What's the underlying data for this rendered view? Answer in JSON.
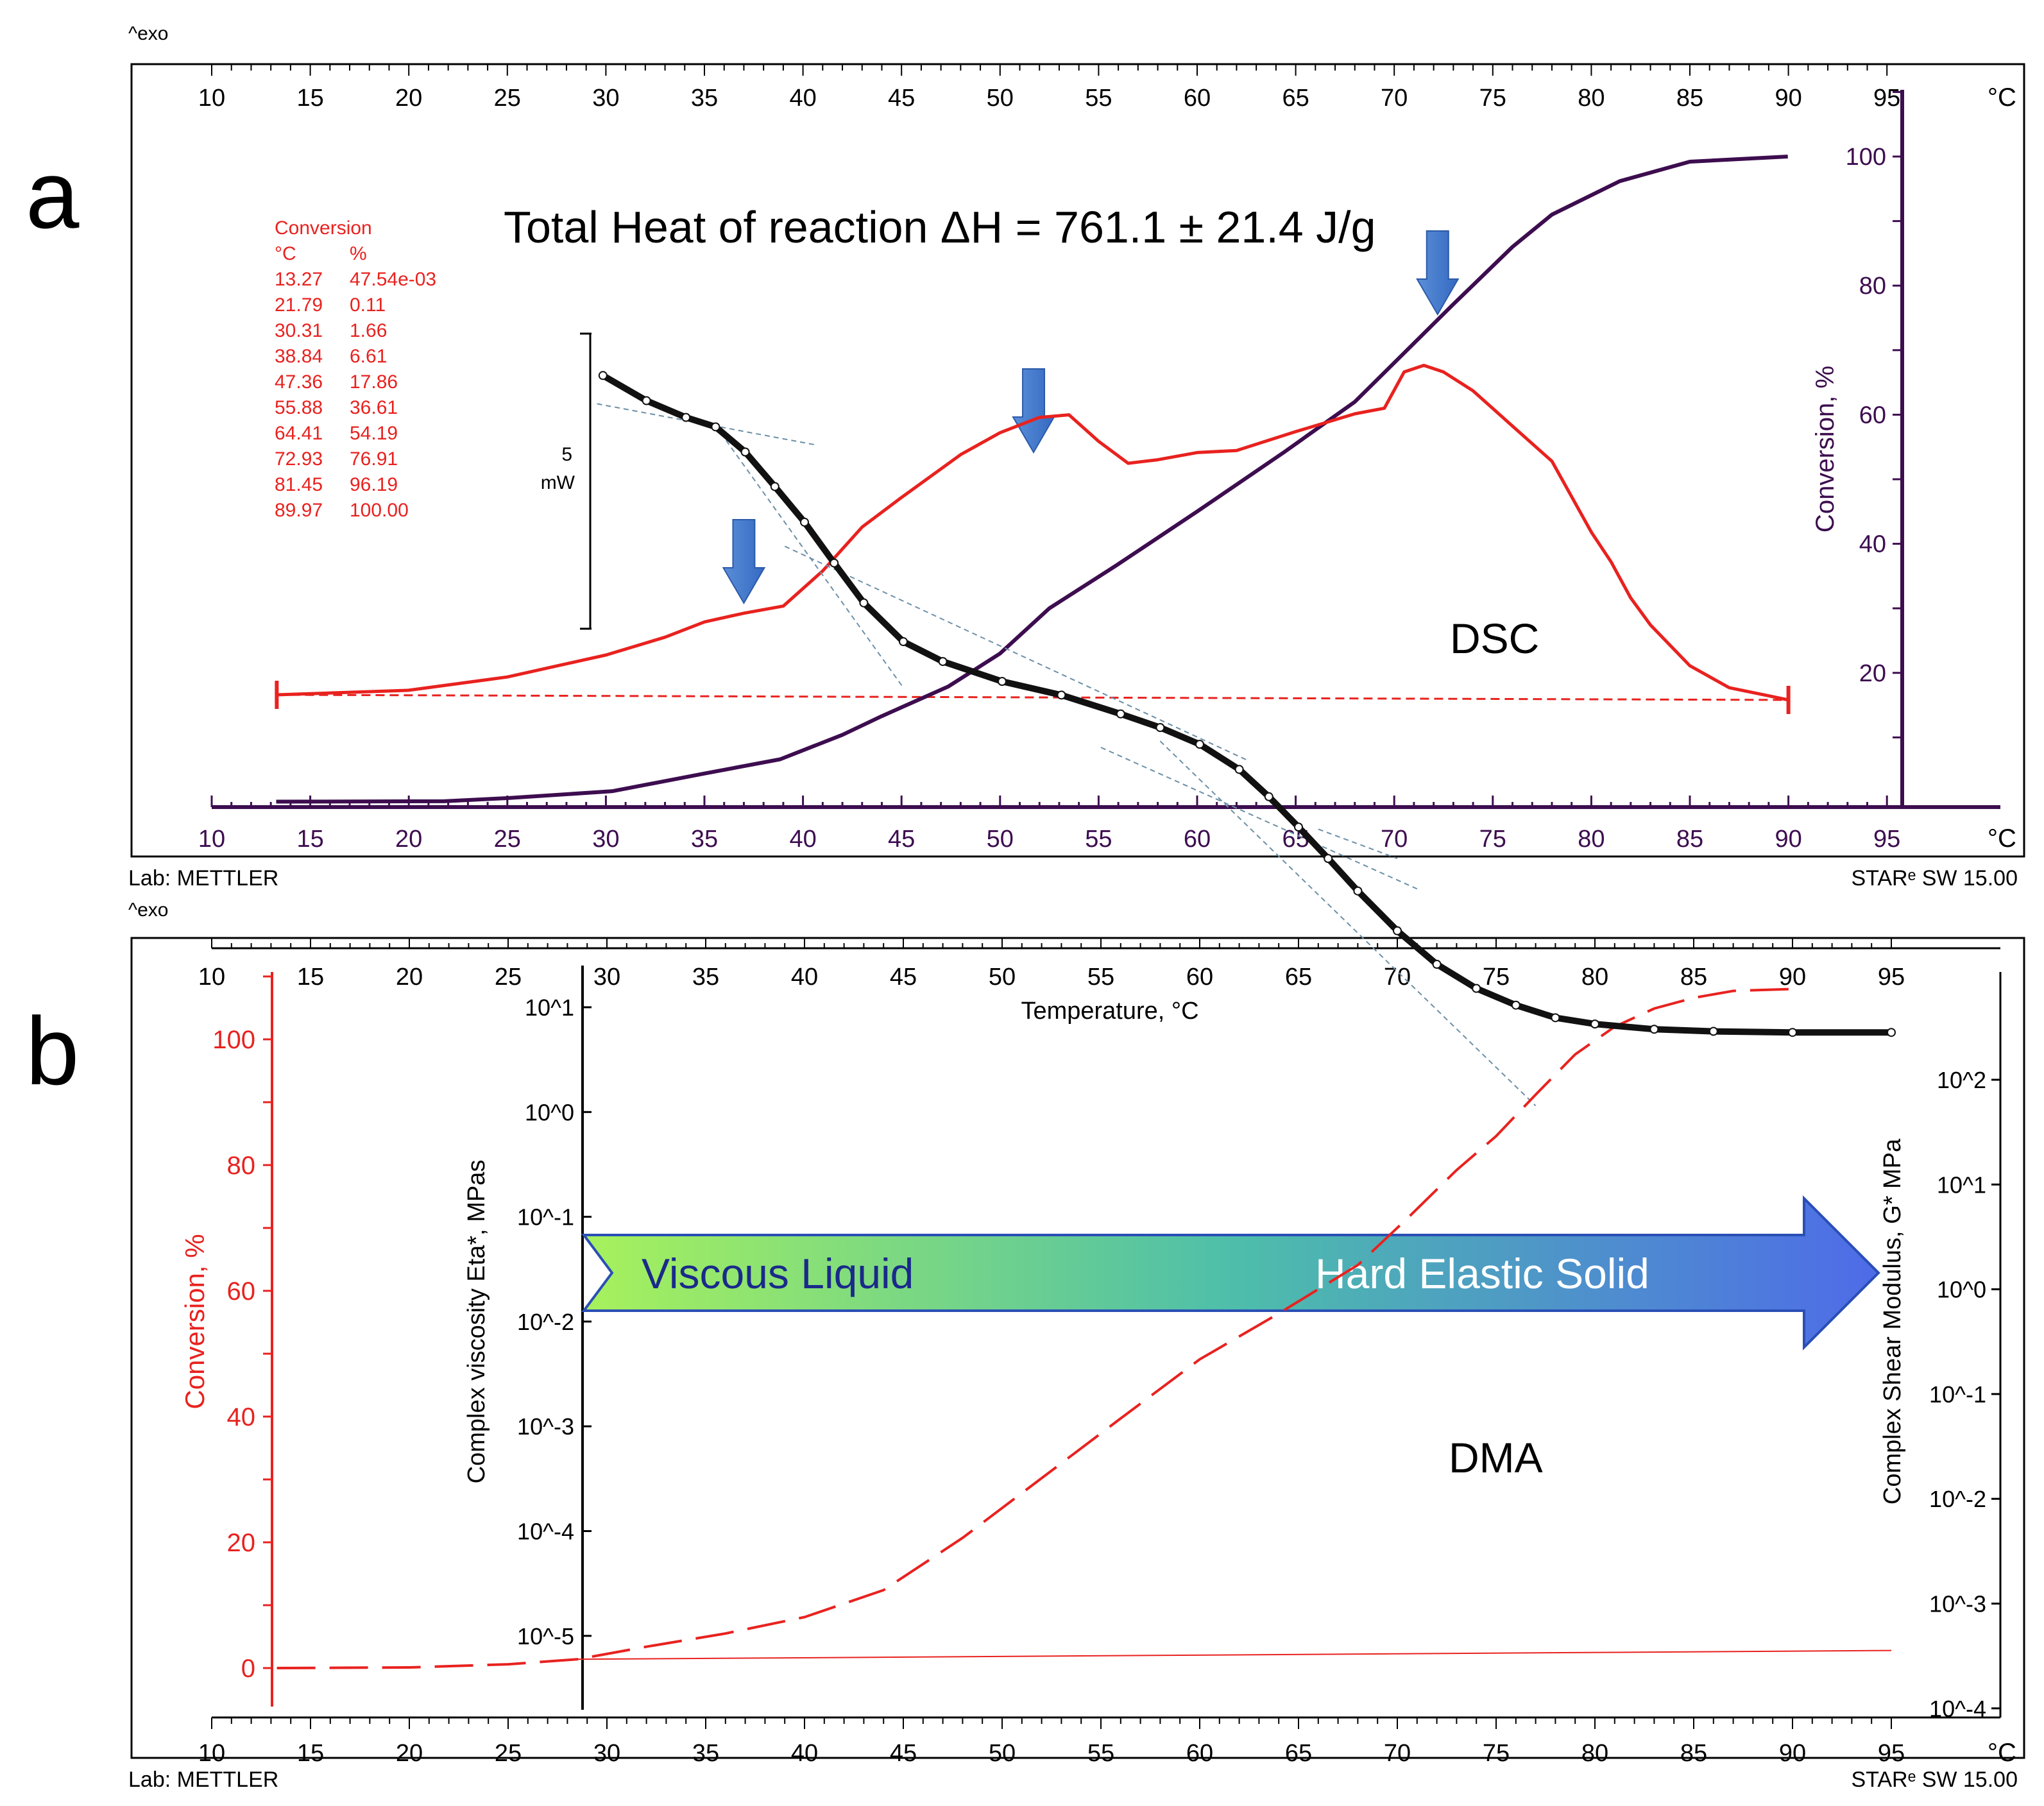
{
  "chart_data": [
    {
      "panel": "a",
      "type": "line",
      "exo_label": "^exo",
      "lab_label": "Lab: METTLER",
      "software_label": "STARᵉ SW 15.00",
      "annotation": "Total Heat of reaction ΔH = 761.1 ±  21.4 J/g",
      "curve_label": "DSC",
      "x_axis": {
        "unit": "°C",
        "min": 10,
        "max": 95,
        "ticks": [
          10,
          15,
          20,
          25,
          30,
          35,
          40,
          45,
          50,
          55,
          60,
          65,
          70,
          75,
          80,
          85,
          90,
          95
        ]
      },
      "y2_axis": {
        "label": "Conversion, %",
        "ticks": [
          20,
          40,
          60,
          80,
          100
        ]
      },
      "scale_bar": {
        "value": "5",
        "unit": "mW"
      },
      "conversion_table": {
        "title": "Conversion",
        "headers": [
          "°C",
          "%"
        ],
        "rows": [
          [
            "13.27",
            "47.54e-03"
          ],
          [
            "21.79",
            "0.11"
          ],
          [
            "30.31",
            "1.66"
          ],
          [
            "38.84",
            "6.61"
          ],
          [
            "47.36",
            "17.86"
          ],
          [
            "55.88",
            "36.61"
          ],
          [
            "64.41",
            "54.19"
          ],
          [
            "72.93",
            "76.91"
          ],
          [
            "81.45",
            "96.19"
          ],
          [
            "89.97",
            "100.00"
          ]
        ]
      },
      "arrows_at_c": [
        37,
        51.7,
        72.2
      ],
      "series": [
        {
          "name": "DSC heat flow (relative)",
          "color": "#e8221f",
          "x": [
            13.3,
            20,
            25,
            30,
            33,
            35,
            37,
            39,
            41,
            43,
            45,
            48,
            50,
            52,
            53.5,
            55,
            56.5,
            58,
            60,
            62,
            65,
            68,
            69.5,
            70.5,
            71.5,
            72.5,
            74,
            76,
            78,
            80,
            81,
            82,
            83,
            85,
            87,
            89,
            90
          ],
          "y": [
            2.1,
            2.19,
            2.45,
            2.88,
            3.23,
            3.53,
            3.7,
            3.84,
            4.53,
            5.39,
            5.97,
            6.81,
            7.24,
            7.54,
            7.59,
            7.07,
            6.64,
            6.71,
            6.85,
            6.89,
            7.26,
            7.61,
            7.72,
            8.43,
            8.56,
            8.43,
            8.06,
            7.37,
            6.68,
            5.29,
            4.71,
            4.0,
            3.47,
            2.67,
            2.24,
            2.08,
            2.0
          ]
        },
        {
          "name": "DSC baseline",
          "color": "#e8221f",
          "style": "dashed",
          "x": [
            13.3,
            90
          ],
          "y": [
            2.1,
            2.0
          ]
        },
        {
          "name": "Conversion, %",
          "color": "#3d0d4f",
          "x": [
            13.27,
            21.79,
            25,
            30.31,
            35,
            38.84,
            42,
            44,
            47.36,
            50,
            52.5,
            55.88,
            60,
            64.41,
            68,
            72.93,
            76,
            78,
            81.45,
            85,
            89.97
          ],
          "y": [
            0.05,
            0.11,
            0.6,
            1.66,
            4.4,
            6.61,
            10.4,
            13.3,
            17.86,
            23,
            30,
            36.61,
            45,
            54.19,
            62,
            76.91,
            86,
            91,
            96.19,
            99.2,
            100.0
          ]
        }
      ]
    },
    {
      "panel": "b",
      "type": "line",
      "exo_label": "^exo",
      "lab_label": "Lab: METTLER",
      "software_label": "STARᵉ SW 15.00",
      "curve_label": "DMA",
      "x_axis": {
        "label": "Temperature, °C",
        "unit": "°C",
        "min": 10,
        "max": 95,
        "ticks": [
          10,
          15,
          20,
          25,
          30,
          35,
          40,
          45,
          50,
          55,
          60,
          65,
          70,
          75,
          80,
          85,
          90,
          95
        ]
      },
      "y_left_axis": {
        "label": "Conversion, %",
        "ticks": [
          0,
          20,
          40,
          60,
          80,
          100
        ]
      },
      "y_viscosity_axis": {
        "label": "Complex viscosity Eta*,  MPas",
        "ticks": [
          "10^1",
          "10^0",
          "10^-1",
          "10^-2",
          "10^-3",
          "10^-4",
          "10^-5"
        ]
      },
      "y_right_axis": {
        "label": "Complex Shear Modulus, G*  MPa",
        "ticks": [
          "10^2",
          "10^1",
          "10^0",
          "10^-1",
          "10^-2",
          "10^-3",
          "10^-4"
        ]
      },
      "arrow_banner": {
        "left_text": "Viscous Liquid",
        "right_text": "Hard  Elastic Solid"
      },
      "series": [
        {
          "name": "Complex viscosity Eta* (log10 MPas)",
          "color": "#111111",
          "x": [
            29.8,
            32,
            34,
            35.5,
            37,
            38.5,
            40,
            41.5,
            43,
            45,
            47,
            50,
            53,
            56,
            58,
            60,
            62,
            63.5,
            65,
            66.5,
            68,
            70,
            72,
            74,
            76,
            78,
            80,
            83,
            86,
            90,
            95
          ],
          "y": [
            -5.03,
            -4.79,
            -4.63,
            -4.54,
            -4.3,
            -3.97,
            -3.63,
            -3.24,
            -2.86,
            -2.49,
            -2.3,
            -2.11,
            -1.98,
            -1.8,
            -1.67,
            -1.51,
            -1.27,
            -1.01,
            -0.72,
            -0.42,
            -0.11,
            0.27,
            0.59,
            0.82,
            0.98,
            1.1,
            1.16,
            1.21,
            1.23,
            1.24,
            1.24
          ]
        },
        {
          "name": "Conversion, % (DMA)",
          "color": "#e8221f",
          "style": "long-dash",
          "x": [
            13.3,
            20,
            25,
            28.5,
            32,
            36,
            40,
            44,
            48,
            52,
            56,
            60,
            64,
            68,
            70.5,
            73,
            75,
            77,
            79,
            81,
            83,
            85,
            87,
            90
          ],
          "y": [
            0,
            0.1,
            0.6,
            1.4,
            3.4,
            5.5,
            8.1,
            12.4,
            20.7,
            30.2,
            39.7,
            49.1,
            56.4,
            64.1,
            71.5,
            79.2,
            84.6,
            91.2,
            97.6,
            102.0,
            104.9,
            106.6,
            107.7,
            108.0
          ]
        },
        {
          "name": "Conversion baseline",
          "color": "#e8221f",
          "x": [
            28.5,
            95
          ],
          "y": [
            1.4,
            2.8
          ]
        }
      ]
    }
  ]
}
